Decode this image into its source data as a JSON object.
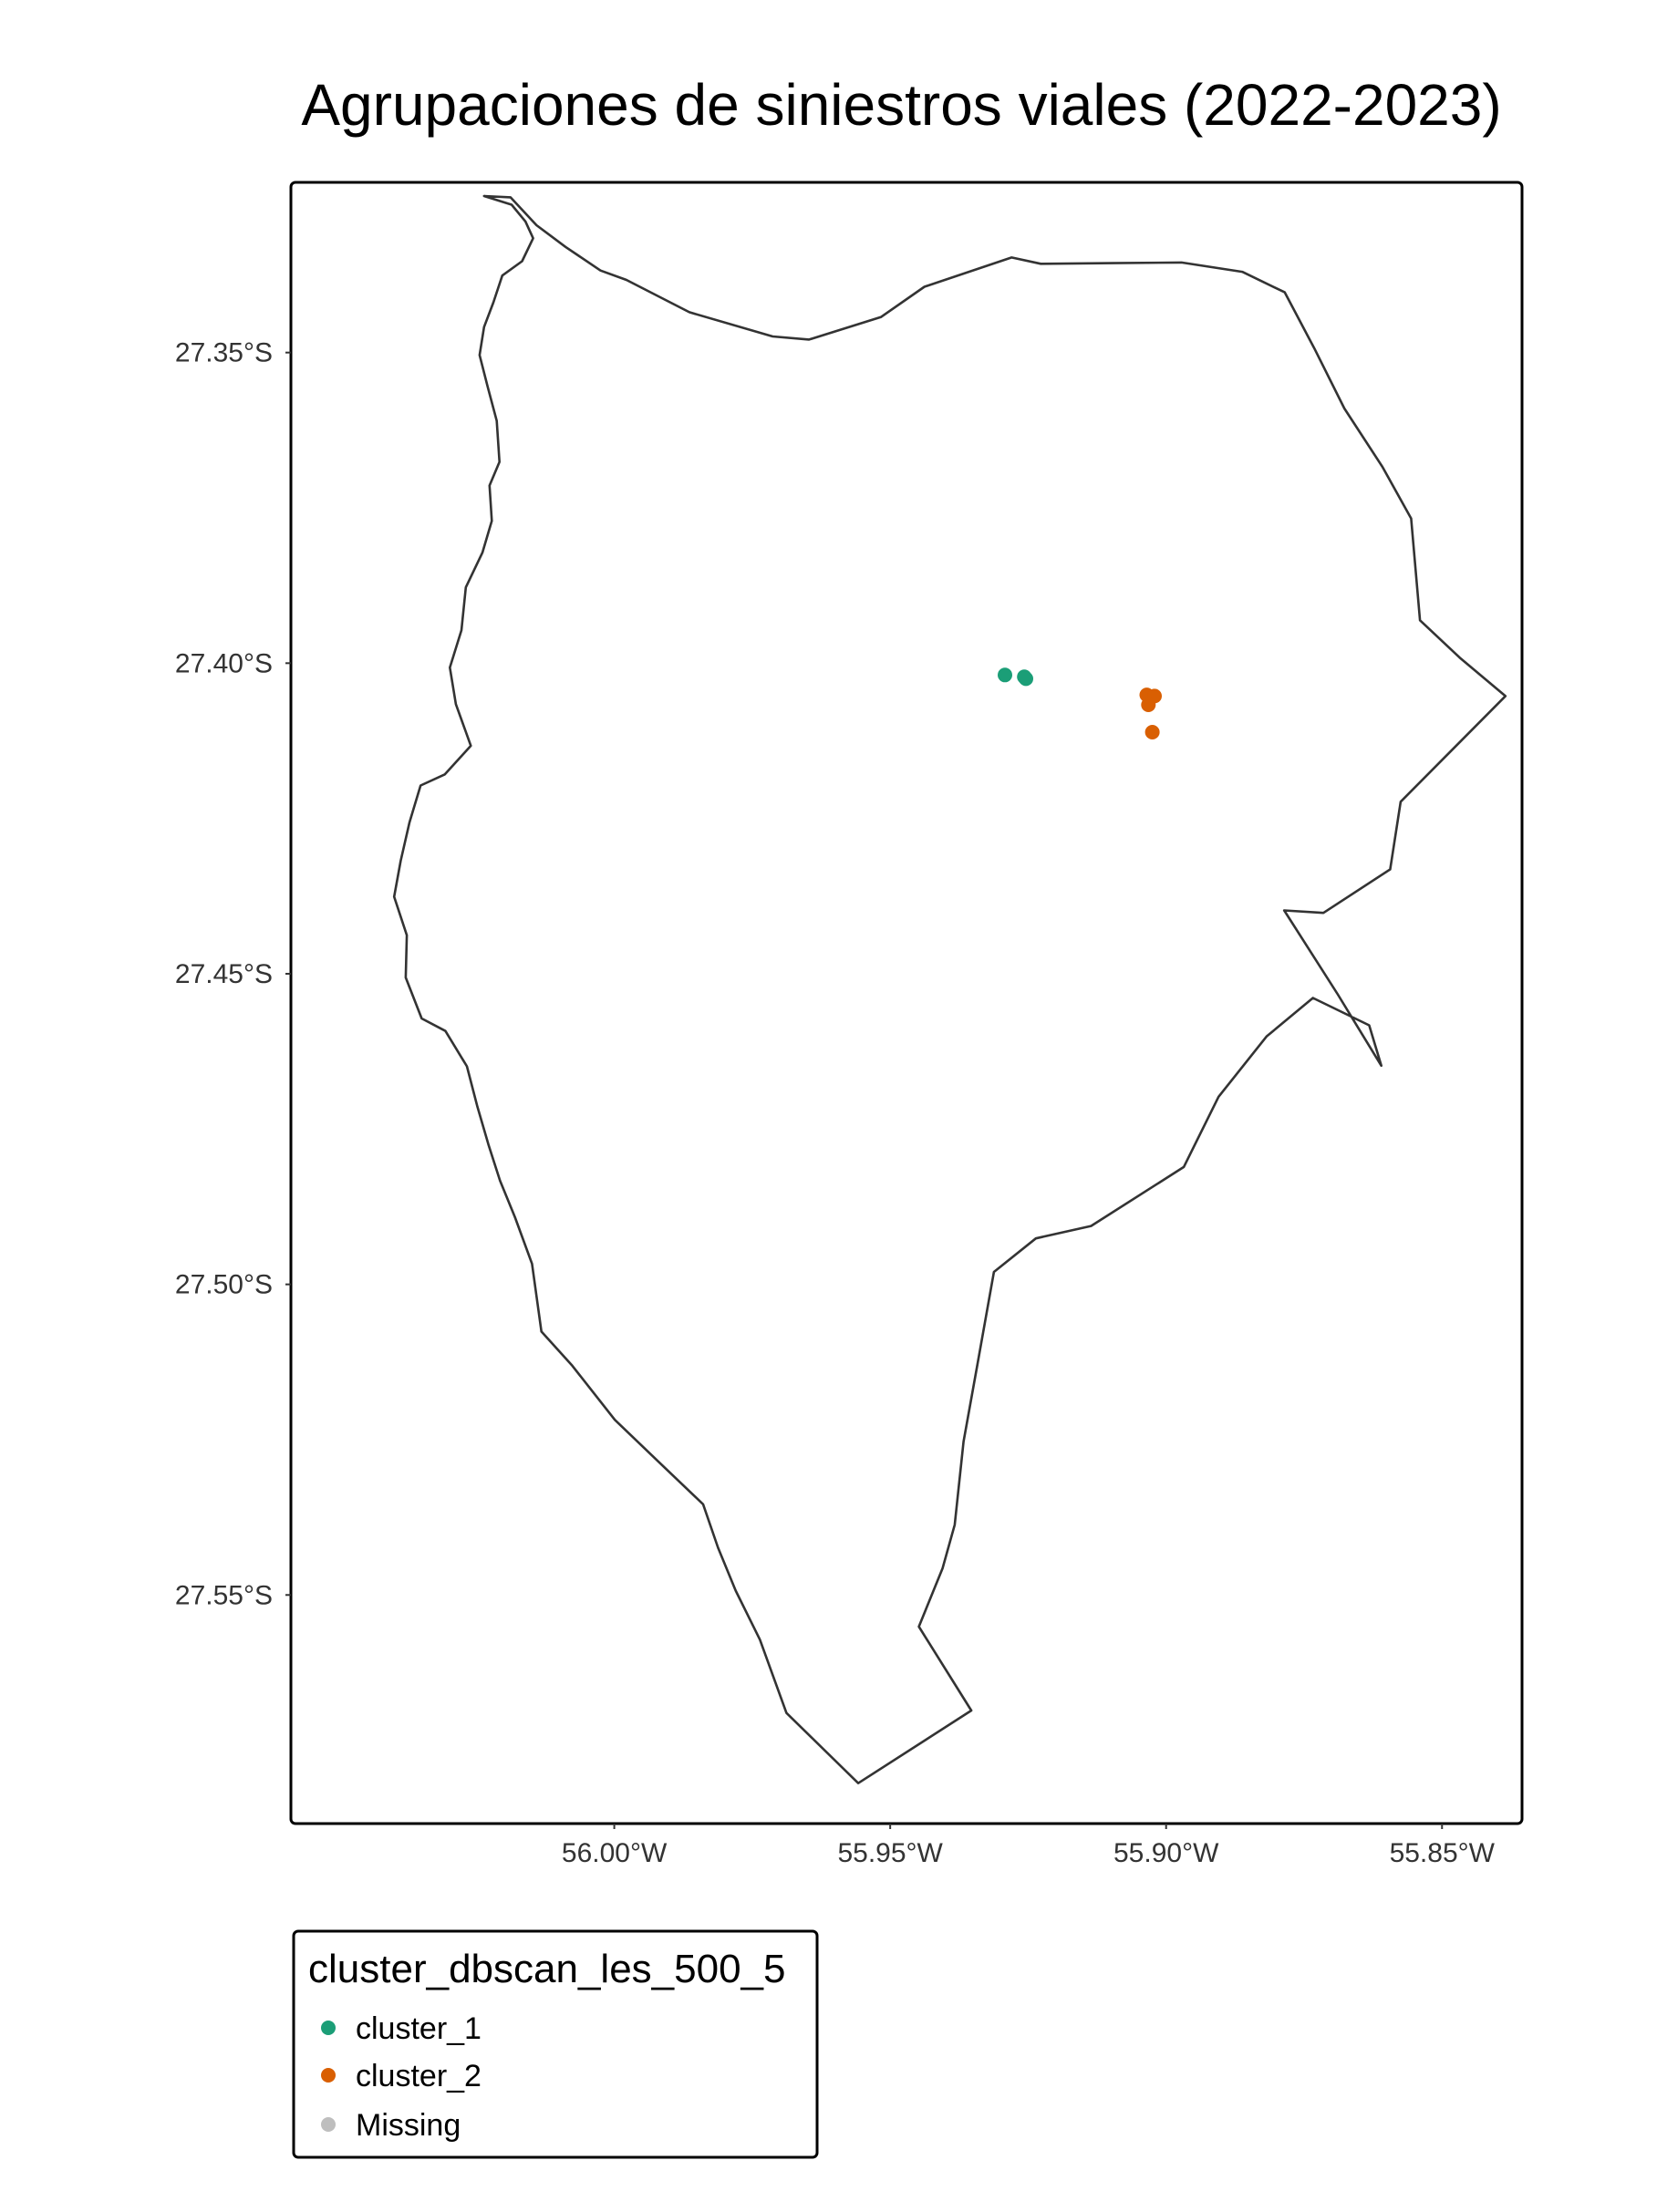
{
  "title": "Agrupaciones de siniestros viales (2022-2023)",
  "axes": {
    "x_ticks": [
      {
        "value": -56.0,
        "label": "56.00°W"
      },
      {
        "value": -55.95,
        "label": "55.95°W"
      },
      {
        "value": -55.9,
        "label": "55.90°W"
      },
      {
        "value": -55.85,
        "label": "55.85°W"
      }
    ],
    "y_ticks": [
      {
        "value": -27.35,
        "label": "27.35°S"
      },
      {
        "value": -27.4,
        "label": "27.40°S"
      },
      {
        "value": -27.45,
        "label": "27.45°S"
      },
      {
        "value": -27.5,
        "label": "27.50°S"
      },
      {
        "value": -27.55,
        "label": "27.55°S"
      }
    ],
    "grid": false
  },
  "legend": {
    "title": "cluster_dbscan_les_500_5",
    "placement": "bottom-left",
    "items": [
      {
        "label": "cluster_1",
        "color": "#1b9e77"
      },
      {
        "label": "cluster_2",
        "color": "#d95f02"
      },
      {
        "label": "Missing",
        "color": "#bebebe"
      }
    ]
  },
  "chart_data": {
    "type": "scatter",
    "title": "Agrupaciones de siniestros viales (2022-2023)",
    "x_unit": "longitude",
    "y_unit": "latitude",
    "xlim": [
      -56.0586,
      -55.8355
    ],
    "ylim": [
      -27.5868,
      -27.3226
    ],
    "outline_color": "#333333",
    "outline": [
      [
        -56.0236,
        -27.3248
      ],
      [
        -56.0186,
        -27.3262
      ],
      [
        -56.0161,
        -27.3289
      ],
      [
        -56.0147,
        -27.3316
      ],
      [
        -56.0167,
        -27.3353
      ],
      [
        -56.0203,
        -27.3376
      ],
      [
        -56.0219,
        -27.3419
      ],
      [
        -56.0236,
        -27.3459
      ],
      [
        -56.0244,
        -27.3504
      ],
      [
        -56.023,
        -27.3553
      ],
      [
        -56.0213,
        -27.361
      ],
      [
        -56.0208,
        -27.3676
      ],
      [
        -56.0226,
        -27.3714
      ],
      [
        -56.0222,
        -27.3771
      ],
      [
        -56.0239,
        -27.3822
      ],
      [
        -56.0269,
        -27.3878
      ],
      [
        -56.0277,
        -27.3947
      ],
      [
        -56.0298,
        -27.4007
      ],
      [
        -56.0287,
        -27.4066
      ],
      [
        -56.026,
        -27.4133
      ],
      [
        -56.0307,
        -27.4179
      ],
      [
        -56.0351,
        -27.4197
      ],
      [
        -56.0371,
        -27.4256
      ],
      [
        -56.0387,
        -27.4318
      ],
      [
        -56.0399,
        -27.4376
      ],
      [
        -56.0376,
        -27.4438
      ],
      [
        -56.0378,
        -27.4506
      ],
      [
        -56.0349,
        -27.4572
      ],
      [
        -56.0306,
        -27.4592
      ],
      [
        -56.0267,
        -27.4649
      ],
      [
        -56.0248,
        -27.4714
      ],
      [
        -56.0228,
        -27.4775
      ],
      [
        -56.0207,
        -27.4833
      ],
      [
        -56.018,
        -27.4892
      ],
      [
        -56.0149,
        -27.4967
      ],
      [
        -56.0132,
        -27.5076
      ],
      [
        -56.0076,
        -27.5131
      ],
      [
        -55.9999,
        -27.5218
      ],
      [
        -55.9918,
        -27.5287
      ],
      [
        -55.9839,
        -27.5354
      ],
      [
        -55.9812,
        -27.5424
      ],
      [
        -55.978,
        -27.5493
      ],
      [
        -55.9736,
        -27.5572
      ],
      [
        -55.9688,
        -27.569
      ],
      [
        -55.9558,
        -27.5803
      ],
      [
        -55.9353,
        -27.5686
      ],
      [
        -55.9448,
        -27.5551
      ],
      [
        -55.9405,
        -27.5457
      ],
      [
        -55.9383,
        -27.5387
      ],
      [
        -55.9367,
        -27.5253
      ],
      [
        -55.9342,
        -27.5129
      ],
      [
        -55.9312,
        -27.498
      ],
      [
        -55.9236,
        -27.4926
      ],
      [
        -55.9136,
        -27.4906
      ],
      [
        -55.8968,
        -27.4811
      ],
      [
        -55.8905,
        -27.4698
      ],
      [
        -55.8818,
        -27.4601
      ],
      [
        -55.8734,
        -27.4539
      ],
      [
        -55.8632,
        -27.4583
      ],
      [
        -55.861,
        -27.4648
      ],
      [
        -55.8689,
        -27.4533
      ],
      [
        -55.8786,
        -27.4398
      ],
      [
        -55.8715,
        -27.4402
      ],
      [
        -55.8594,
        -27.4332
      ],
      [
        -55.8575,
        -27.4223
      ],
      [
        -55.8385,
        -27.4053
      ],
      [
        -55.8468,
        -27.3991
      ],
      [
        -55.854,
        -27.3931
      ],
      [
        -55.8556,
        -27.3767
      ],
      [
        -55.8608,
        -27.3684
      ],
      [
        -55.8677,
        -27.359
      ],
      [
        -55.8731,
        -27.3494
      ],
      [
        -55.8785,
        -27.3403
      ],
      [
        -55.8862,
        -27.337
      ],
      [
        -55.8972,
        -27.3355
      ],
      [
        -55.9098,
        -27.3356
      ],
      [
        -55.9227,
        -27.3357
      ],
      [
        -55.928,
        -27.3347
      ],
      [
        -55.9438,
        -27.3394
      ],
      [
        -55.9517,
        -27.3443
      ],
      [
        -55.9647,
        -27.3479
      ],
      [
        -55.9713,
        -27.3474
      ],
      [
        -55.9864,
        -27.3435
      ],
      [
        -55.9978,
        -27.3383
      ],
      [
        -56.0025,
        -27.3368
      ],
      [
        -56.0088,
        -27.333
      ],
      [
        -56.0141,
        -27.3295
      ],
      [
        -56.0188,
        -27.325
      ],
      [
        -56.0236,
        -27.3248
      ]
    ],
    "series": [
      {
        "name": "cluster_1",
        "points": [
          [
            -55.9292,
            -27.4019
          ],
          [
            -55.9257,
            -27.4022
          ],
          [
            -55.9254,
            -27.4025
          ]
        ]
      },
      {
        "name": "cluster_2",
        "points": [
          [
            -55.9035,
            -27.4051
          ],
          [
            -55.9021,
            -27.4053
          ],
          [
            -55.9032,
            -27.4067
          ],
          [
            -55.9025,
            -27.4111
          ]
        ]
      }
    ]
  }
}
